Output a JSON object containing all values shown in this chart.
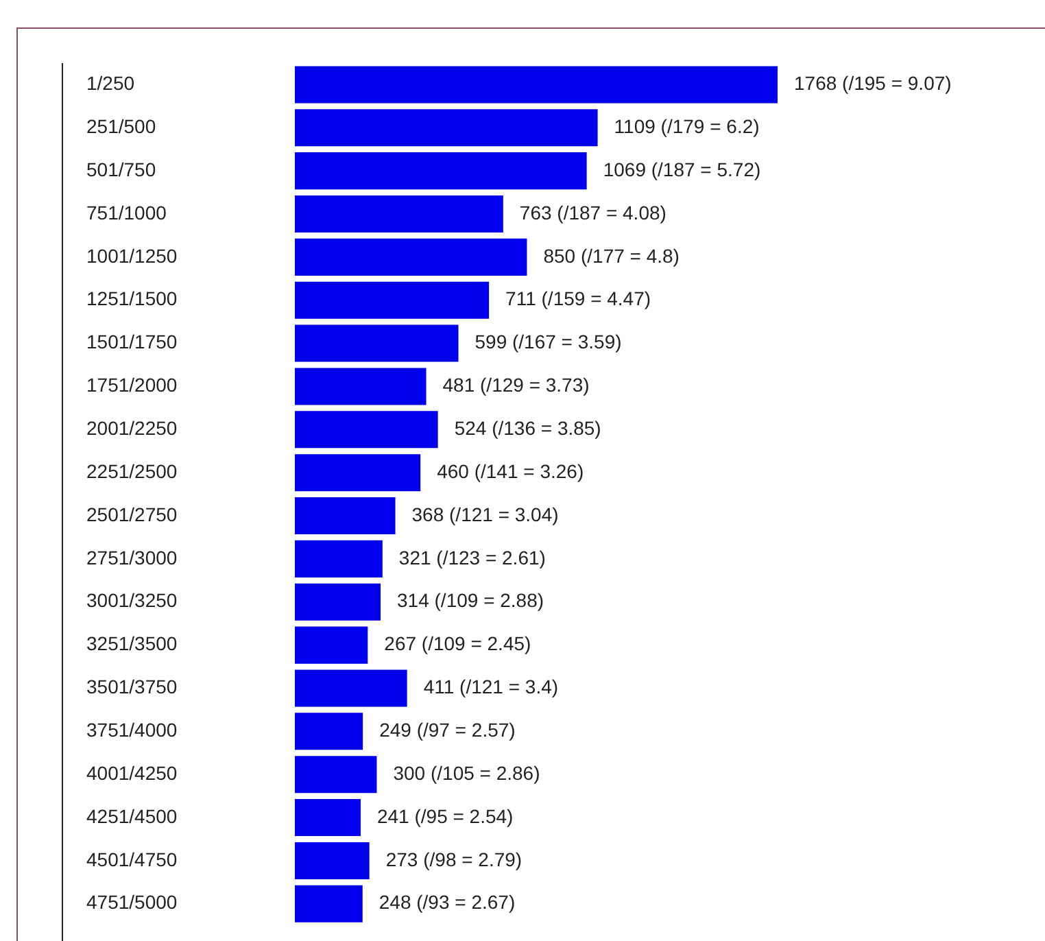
{
  "chart_data": {
    "type": "bar",
    "orientation": "horizontal",
    "color": "#0000ee",
    "categories": [
      "1/250",
      "251/500",
      "501/750",
      "751/1000",
      "1001/1250",
      "1251/1500",
      "1501/1750",
      "1751/2000",
      "2001/2250",
      "2251/2500",
      "2501/2750",
      "2751/3000",
      "3001/3250",
      "3251/3500",
      "3501/3750",
      "3751/4000",
      "4001/4250",
      "4251/4500",
      "4501/4750",
      "4751/5000"
    ],
    "values": [
      1768,
      1109,
      1069,
      763,
      850,
      711,
      599,
      481,
      524,
      460,
      368,
      321,
      314,
      267,
      411,
      249,
      300,
      241,
      273,
      248
    ],
    "value_labels": [
      "1768 (/195 = 9.07)",
      "1109 (/179 = 6.2)",
      "1069 (/187 = 5.72)",
      "763 (/187 = 4.08)",
      "850 (/177 = 4.8)",
      "711 (/159 = 4.47)",
      "599 (/167 = 3.59)",
      "481 (/129 = 3.73)",
      "524 (/136 = 3.85)",
      "460 (/141 = 3.26)",
      "368 (/121 = 3.04)",
      "321 (/123 = 2.61)",
      "314 (/109 = 2.88)",
      "267 (/109 = 2.45)",
      "411 (/121 = 3.4)",
      "249 (/97 = 2.57)",
      "300 (/105 = 2.86)",
      "241 (/95 = 2.54)",
      "273 (/98 = 2.79)",
      "248 (/93 = 2.67)"
    ]
  }
}
